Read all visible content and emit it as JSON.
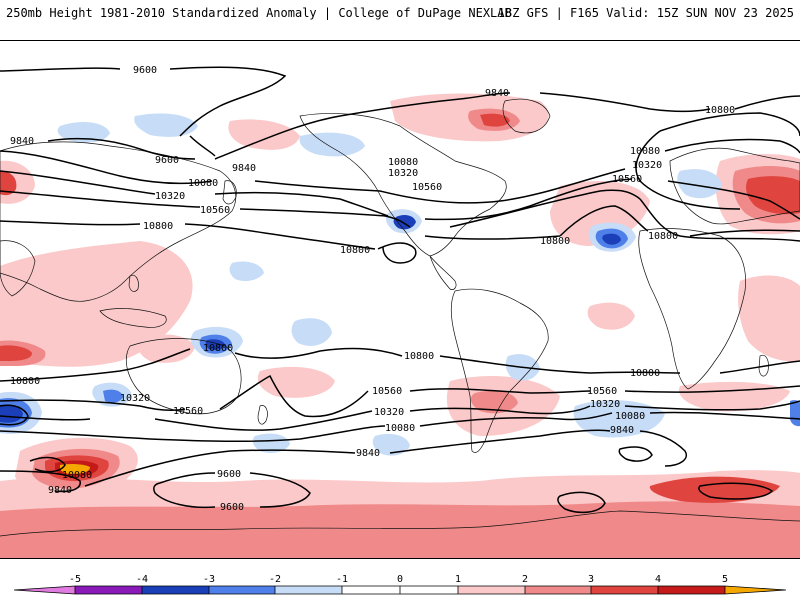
{
  "header": {
    "left_title": "250mb Height 1981-2010 Standardized Anomaly | College of DuPage NEXLAB",
    "right_title": "18Z GFS | F165 Valid: 15Z SUN NOV 23 2025"
  },
  "colors": {
    "neg5": "#e07be0",
    "neg4": "#8a1ab8",
    "neg3": "#1a3fb8",
    "neg2": "#4f7fe8",
    "neg1": "#c6dcf7",
    "zero": "#ffffff",
    "pos1": "#fbc9c9",
    "pos2": "#f08a8a",
    "pos3": "#e0443f",
    "pos4": "#c41a1a",
    "pos5": "#f5a800"
  },
  "contour_labels": [
    {
      "text": "9600",
      "id": "c1"
    },
    {
      "text": "9840",
      "id": "c2"
    },
    {
      "text": "9840",
      "id": "c3"
    },
    {
      "text": "9600",
      "id": "c4"
    },
    {
      "text": "9840",
      "id": "c5"
    },
    {
      "text": "10080",
      "id": "c6"
    },
    {
      "text": "10320",
      "id": "c7"
    },
    {
      "text": "10560",
      "id": "c8"
    },
    {
      "text": "10800",
      "id": "c9"
    },
    {
      "text": "10080",
      "id": "c10"
    },
    {
      "text": "10320",
      "id": "c11"
    },
    {
      "text": "10560",
      "id": "c12"
    },
    {
      "text": "10800",
      "id": "c13"
    },
    {
      "text": "10800",
      "id": "c14"
    },
    {
      "text": "10080",
      "id": "c15"
    },
    {
      "text": "10320",
      "id": "c16"
    },
    {
      "text": "10560",
      "id": "c17"
    },
    {
      "text": "10800",
      "id": "c18"
    },
    {
      "text": "10800",
      "id": "c19"
    },
    {
      "text": "10800",
      "id": "c20"
    },
    {
      "text": "10800",
      "id": "c21"
    },
    {
      "text": "10560",
      "id": "c22"
    },
    {
      "text": "10320",
      "id": "c23"
    },
    {
      "text": "10080",
      "id": "c24"
    },
    {
      "text": "9840",
      "id": "c25"
    },
    {
      "text": "10800",
      "id": "c26"
    },
    {
      "text": "10560",
      "id": "c27"
    },
    {
      "text": "10320",
      "id": "c28"
    },
    {
      "text": "10080",
      "id": "c29"
    },
    {
      "text": "9840",
      "id": "c30"
    },
    {
      "text": "10800",
      "id": "c31"
    },
    {
      "text": "10320",
      "id": "c32"
    },
    {
      "text": "10560",
      "id": "c33"
    },
    {
      "text": "10080",
      "id": "c34"
    },
    {
      "text": "9840",
      "id": "c35"
    },
    {
      "text": "9600",
      "id": "c36"
    },
    {
      "text": "9600",
      "id": "c37"
    }
  ],
  "colorbar": {
    "ticks": [
      "-5",
      "-4",
      "-3",
      "-2",
      "-1",
      "0",
      "1",
      "2",
      "3",
      "4",
      "5"
    ]
  }
}
